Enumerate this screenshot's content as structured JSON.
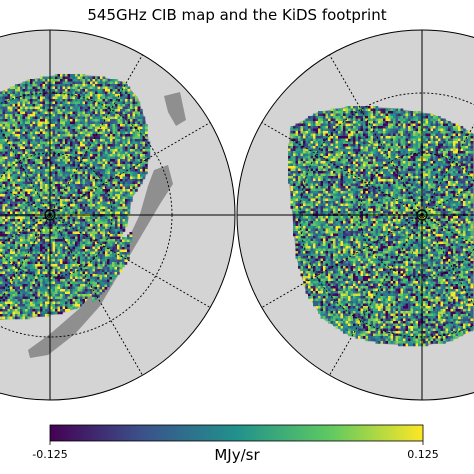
{
  "figure": {
    "title": "545GHz CIB map and the KiDS footprint"
  },
  "colorbar": {
    "min_label": "-0.125",
    "max_label": "0.125",
    "unit": "MJy/sr",
    "vmin": -0.125,
    "vmax": 0.125,
    "colormap": "viridis",
    "stops": [
      "#440154",
      "#3b528b",
      "#21918c",
      "#5ec962",
      "#fde725"
    ]
  },
  "colors": {
    "sphere": "#d4d4d4",
    "masked": "#8f8f8f",
    "graticule": "#000000"
  },
  "hemispheres": [
    {
      "name": "left-hemisphere",
      "content": "CIB sky map with masked KiDS strip"
    },
    {
      "name": "right-hemisphere",
      "content": "CIB sky map with KiDS footprint strip"
    }
  ]
}
